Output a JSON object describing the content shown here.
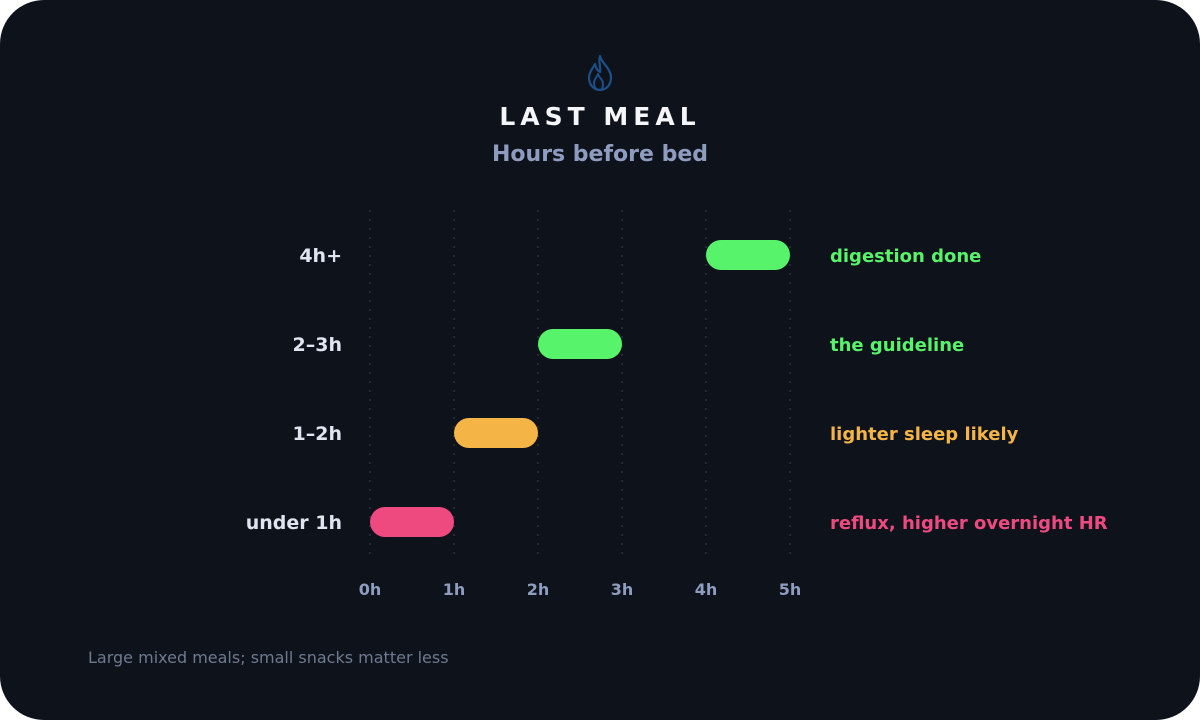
{
  "header": {
    "icon": "flame-icon",
    "title": "LAST MEAL",
    "subtitle": "Hours before bed"
  },
  "footnote": "Large mixed meals; small snacks matter less",
  "chart_data": {
    "type": "bar",
    "orientation": "horizontal-range",
    "title": "LAST MEAL",
    "subtitle": "Hours before bed",
    "x": {
      "min": 0,
      "max": 5,
      "ticks": [
        0,
        1,
        2,
        3,
        4,
        5
      ],
      "tick_labels": [
        "0h",
        "1h",
        "2h",
        "3h",
        "4h",
        "5h"
      ]
    },
    "grid": true,
    "categories": [
      "4h+",
      "2–3h",
      "1–2h",
      "under 1h"
    ],
    "bars": [
      {
        "category": "4h+",
        "start": 4,
        "end": 5,
        "annotation": "digestion done",
        "color": "#57f36b"
      },
      {
        "category": "2–3h",
        "start": 2,
        "end": 3,
        "annotation": "the guideline",
        "color": "#57f36b"
      },
      {
        "category": "1–2h",
        "start": 1,
        "end": 2,
        "annotation": "lighter sleep likely",
        "color": "#f5b546"
      },
      {
        "category": "under 1h",
        "start": 0,
        "end": 1,
        "annotation": "reflux, higher overnight HR",
        "color": "#ee4a80"
      }
    ]
  },
  "colors": {
    "background": "#0e121b",
    "grid": "#2a3140",
    "category_label": "#dfe4ee",
    "tick_label": "#8e9dbf",
    "flame_icon": "#1c4f86"
  }
}
